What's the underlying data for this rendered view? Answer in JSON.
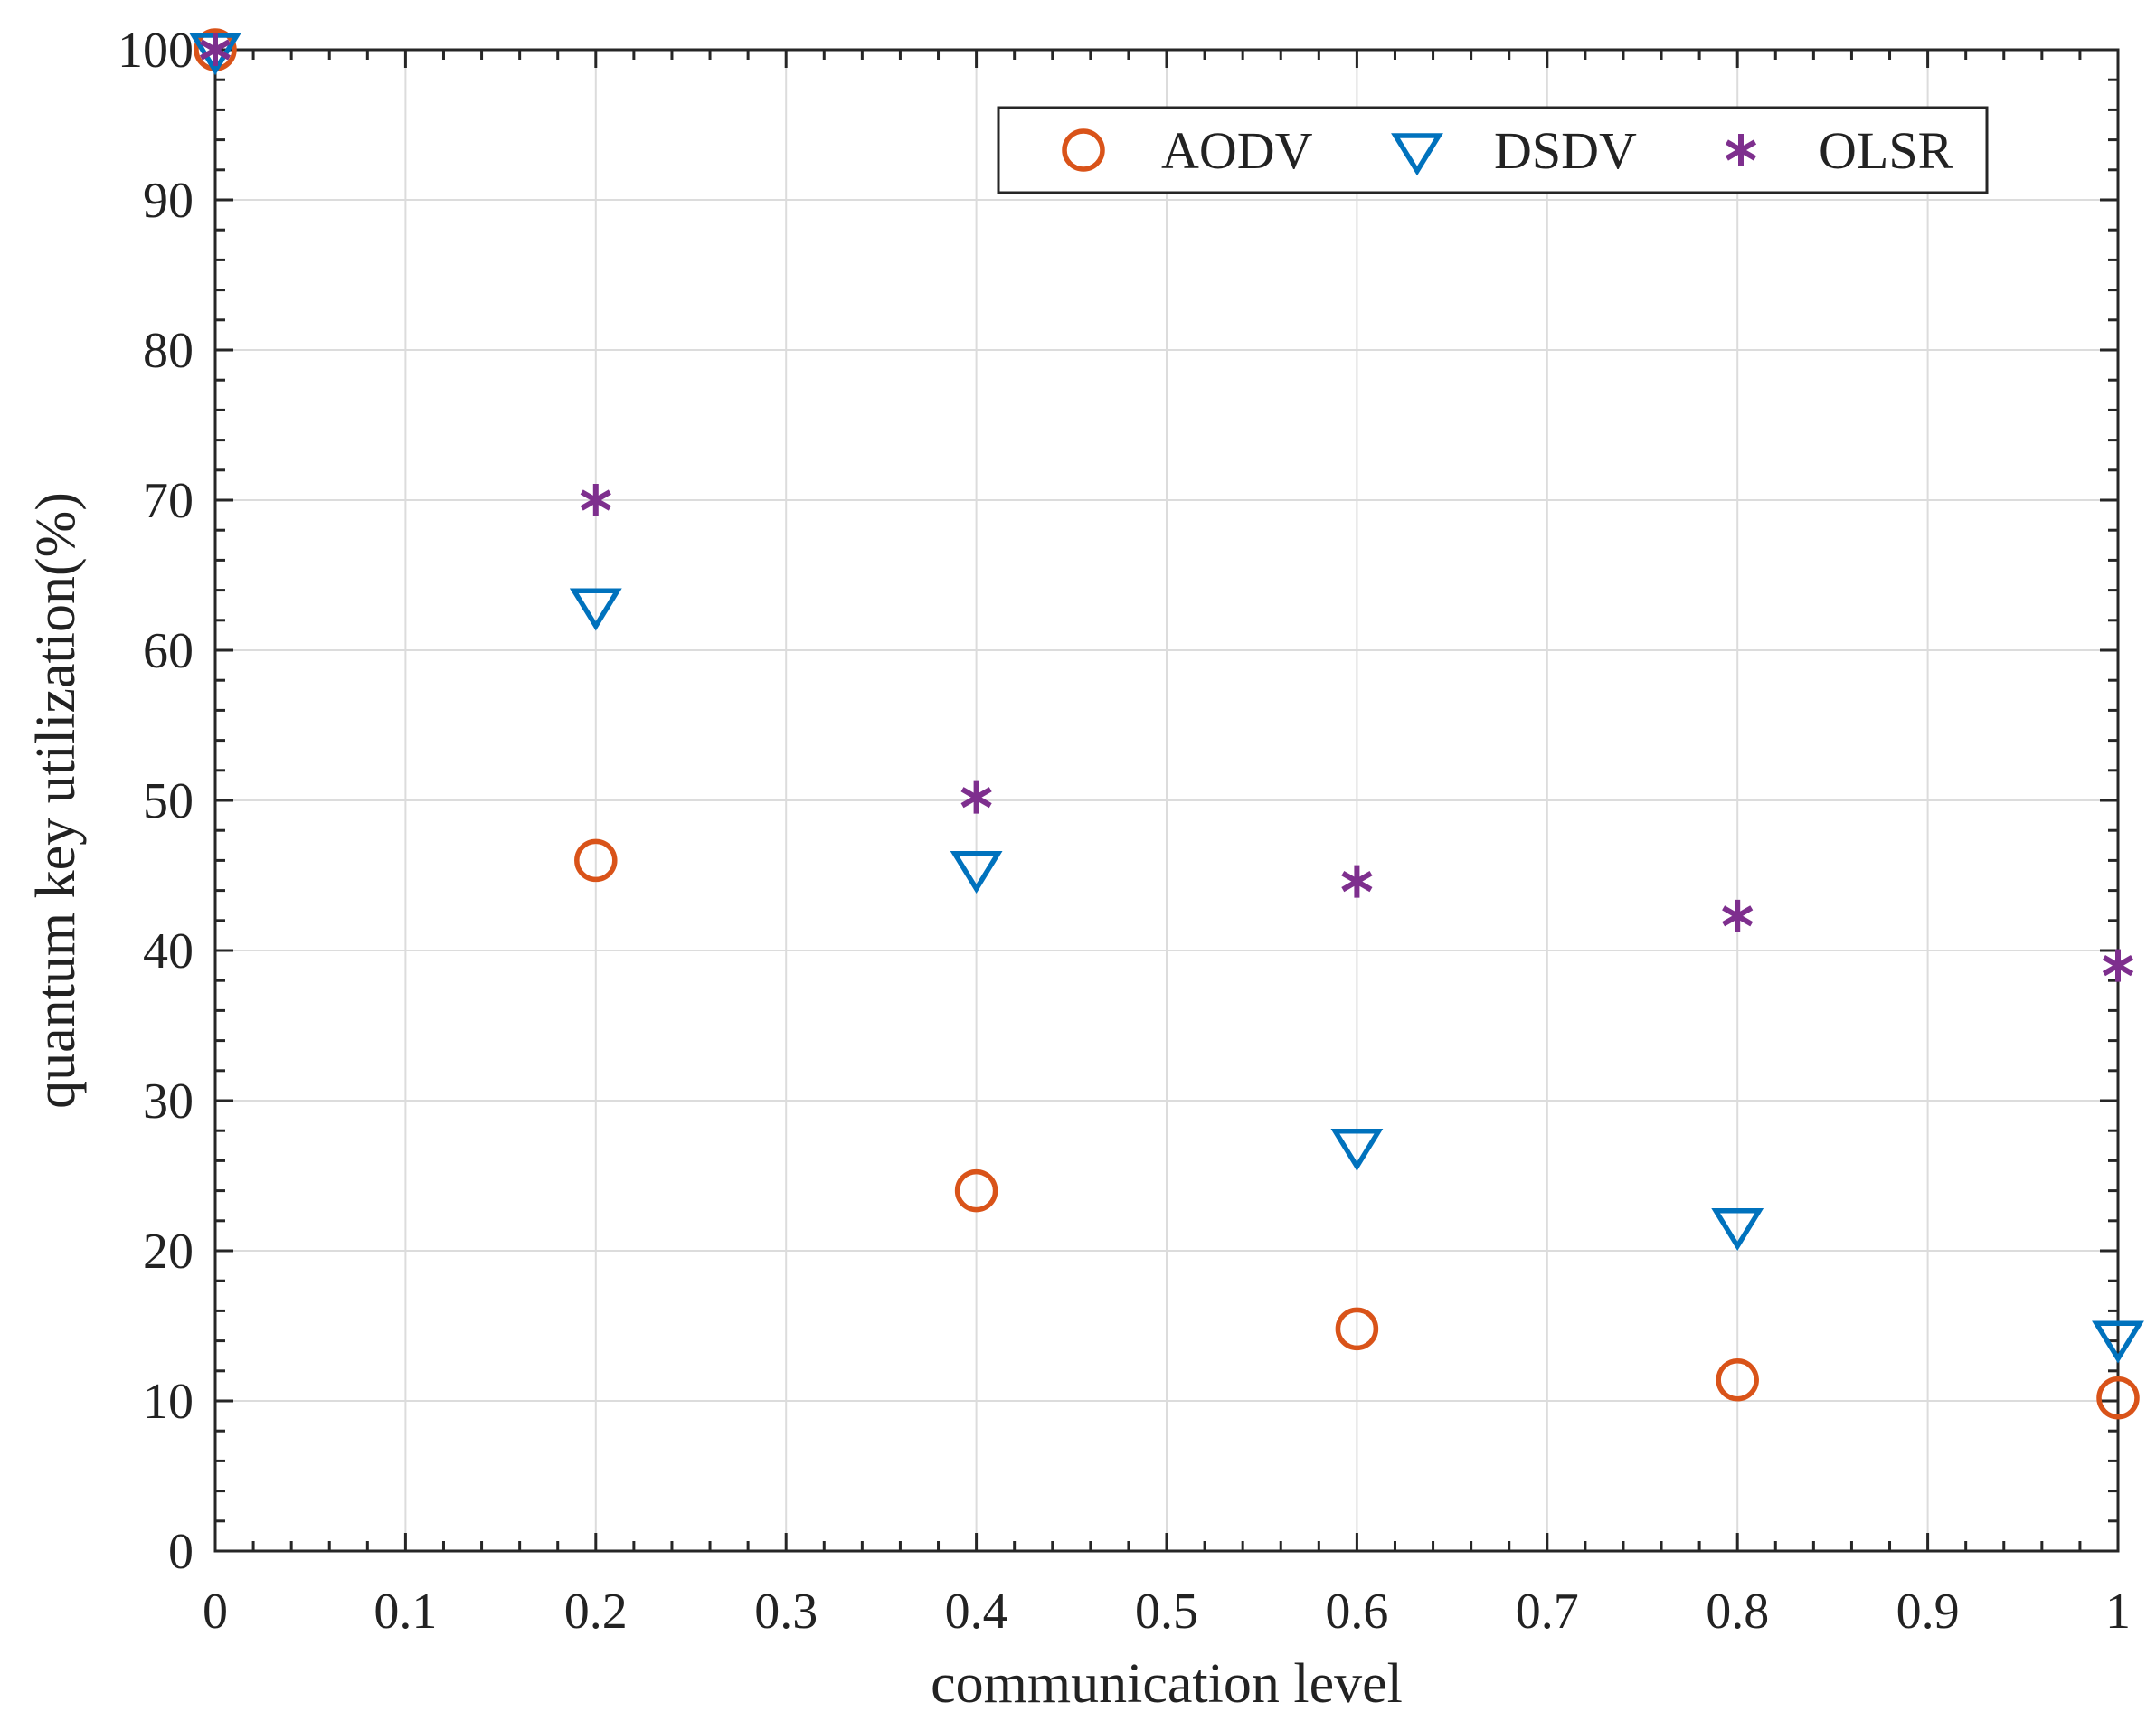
{
  "chart_data": {
    "type": "scatter",
    "title": "",
    "xlabel": "communication level",
    "ylabel": "quantum key utilization(%)",
    "xlim": [
      0,
      1
    ],
    "ylim": [
      0,
      100
    ],
    "xticks": [
      0,
      0.1,
      0.2,
      0.3,
      0.4,
      0.5,
      0.6,
      0.7,
      0.8,
      0.9,
      1
    ],
    "xtick_labels": [
      "0",
      "0.1",
      "0.2",
      "0.3",
      "0.4",
      "0.5",
      "0.6",
      "0.7",
      "0.8",
      "0.9",
      "1"
    ],
    "yticks": [
      0,
      10,
      20,
      30,
      40,
      50,
      60,
      70,
      80,
      90,
      100
    ],
    "ytick_labels": [
      "0",
      "10",
      "20",
      "30",
      "40",
      "50",
      "60",
      "70",
      "80",
      "90",
      "100"
    ],
    "grid": true,
    "legend_position": "top-right",
    "x": [
      0,
      0.2,
      0.4,
      0.6,
      0.8,
      1
    ],
    "series": [
      {
        "name": "AODV",
        "marker": "circle",
        "color": "#D95319",
        "values": [
          100,
          46,
          24,
          14.8,
          11.4,
          10.2
        ]
      },
      {
        "name": "DSDV",
        "marker": "triangle-down",
        "color": "#0072BD",
        "values": [
          100,
          63,
          45.5,
          27,
          21.7,
          14.2
        ]
      },
      {
        "name": "OLSR",
        "marker": "asterisk",
        "color": "#7E2F8E",
        "values": [
          100,
          70,
          50.2,
          44.6,
          42.3,
          39
        ]
      }
    ]
  }
}
